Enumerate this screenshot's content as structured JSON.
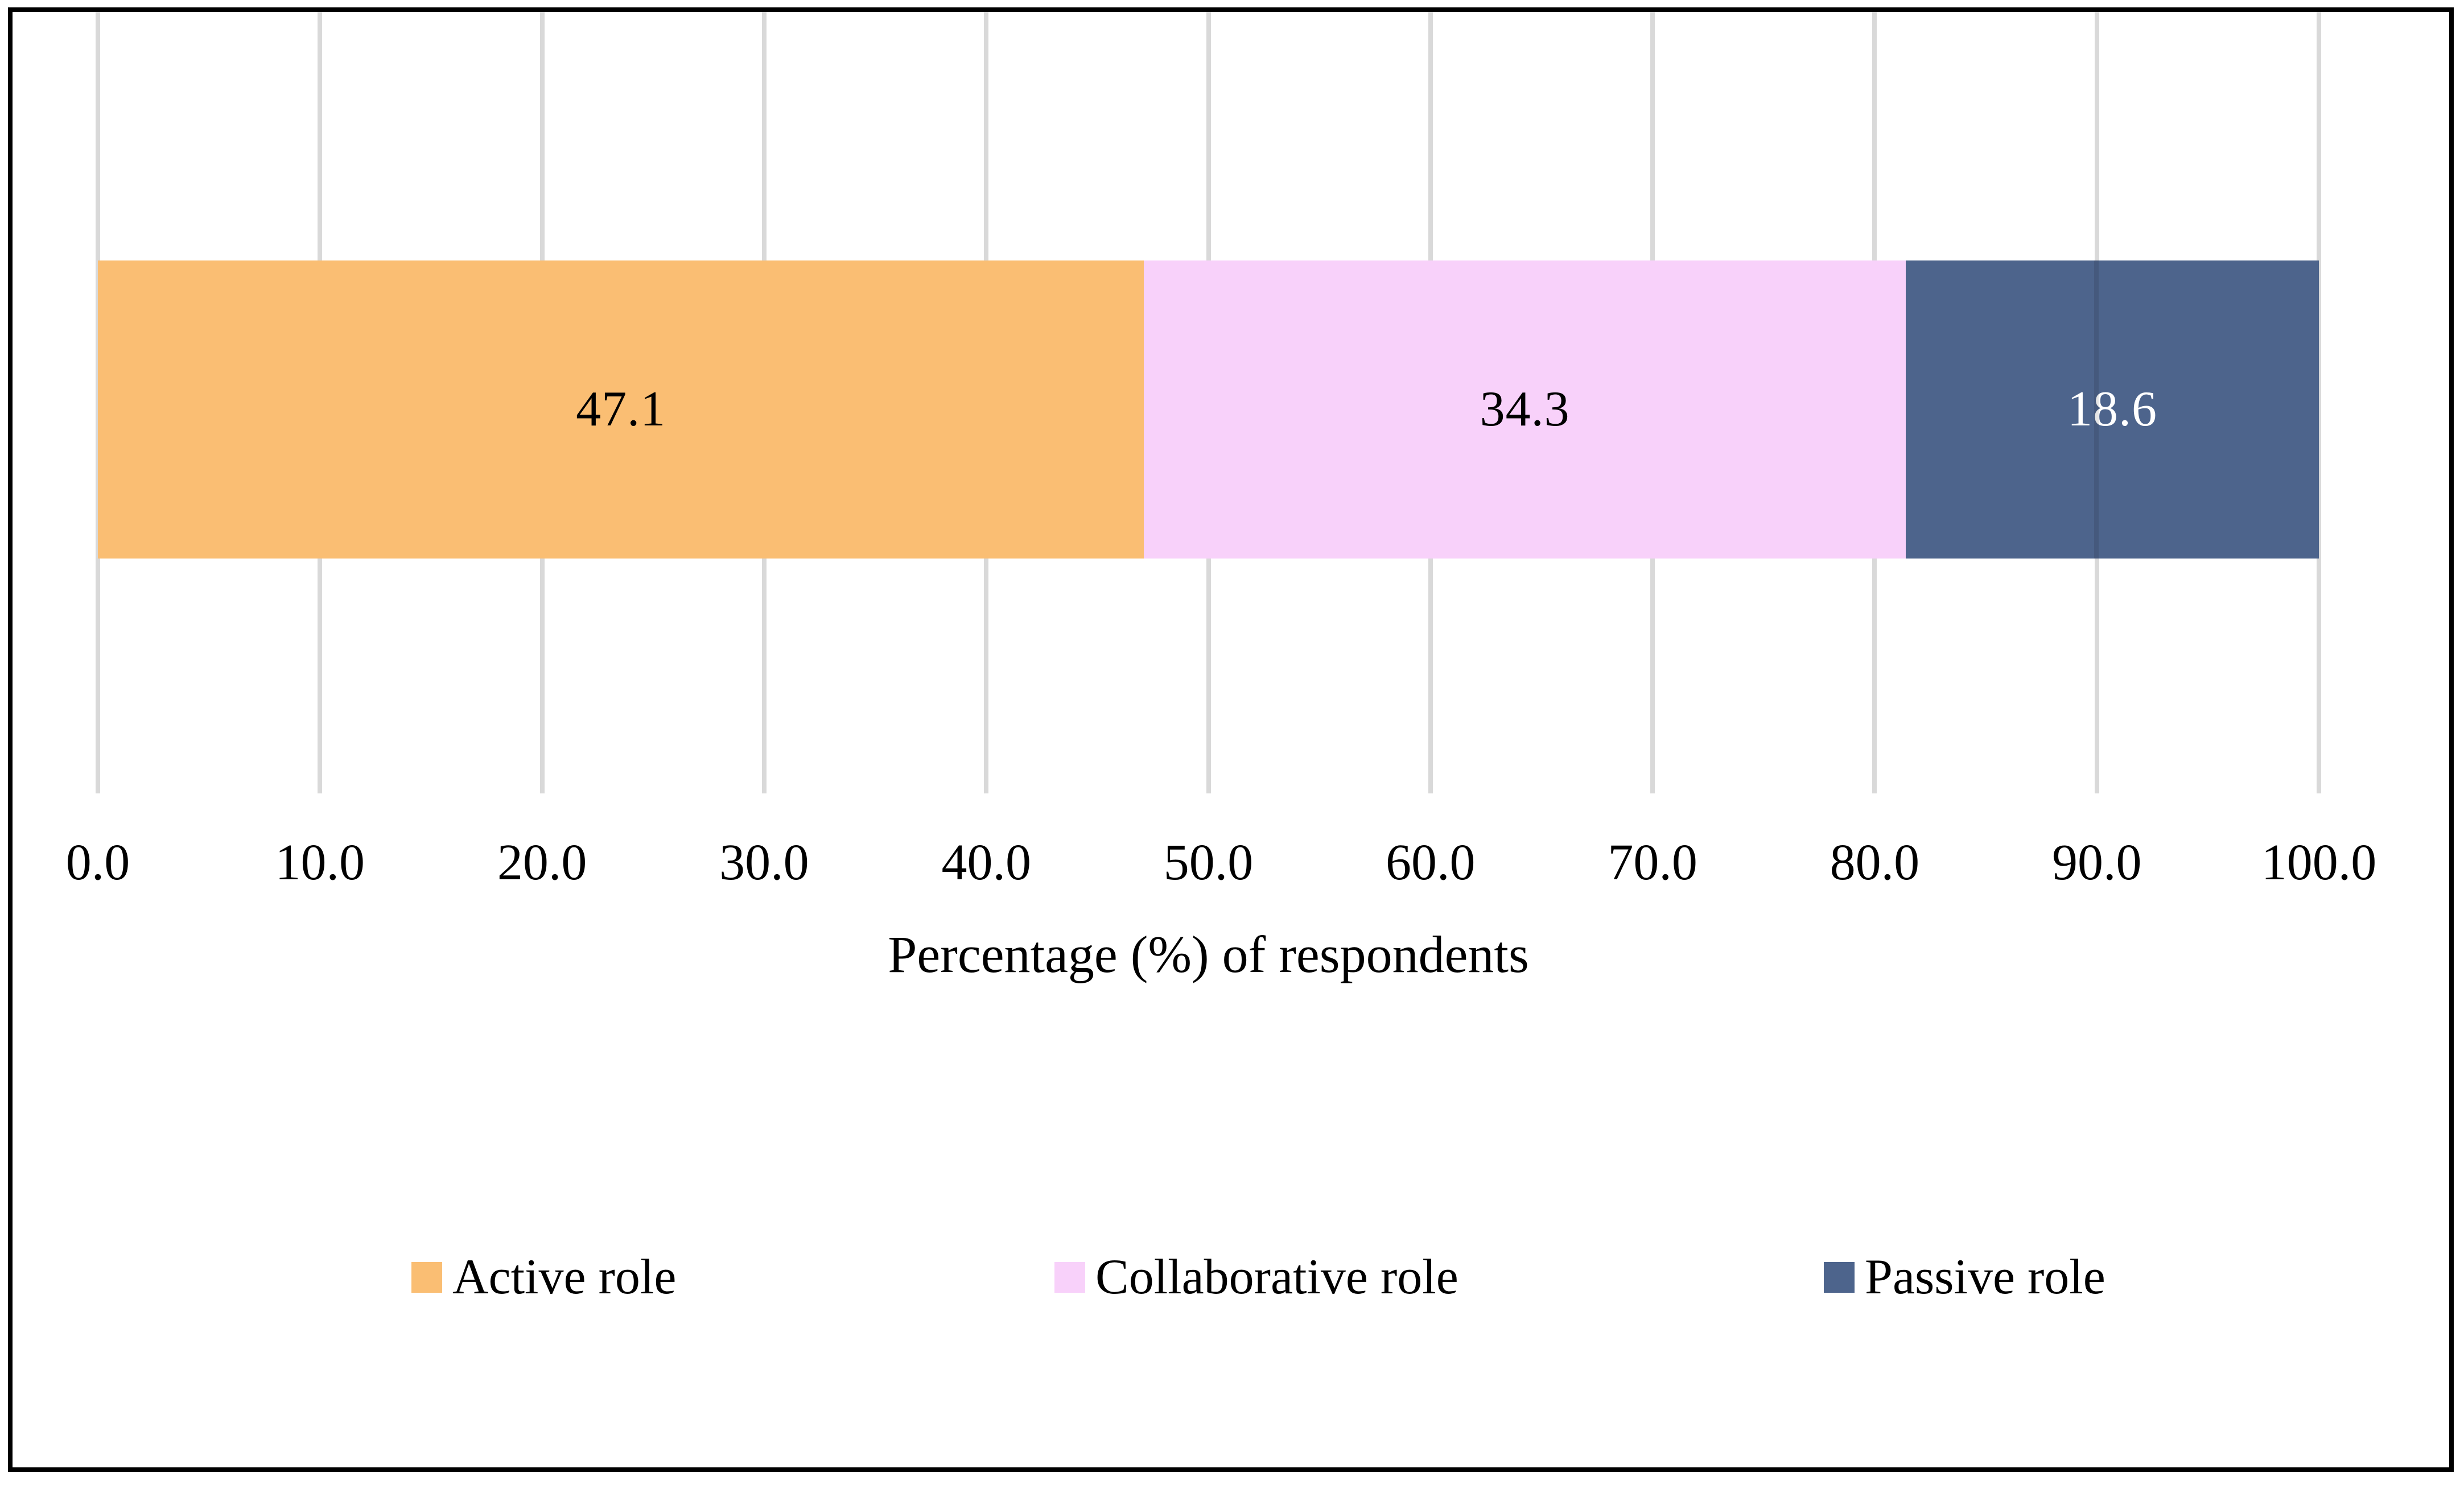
{
  "chart_data": {
    "type": "bar",
    "variant": "horizontal-stacked",
    "xlabel": "Percentage (%) of respondents",
    "xlim": [
      0,
      100
    ],
    "x_ticks": [
      "0.0",
      "10.0",
      "20.0",
      "30.0",
      "40.0",
      "50.0",
      "60.0",
      "70.0",
      "80.0",
      "90.0",
      "100.0"
    ],
    "grid": true,
    "legend_position": "bottom",
    "series": [
      {
        "name": "Active role",
        "value": 47.1,
        "value_label": "47.1",
        "color": "#FABE73",
        "label_color": "#000000"
      },
      {
        "name": "Collaborative role",
        "value": 34.3,
        "value_label": "34.3",
        "color": "#F8D1FA",
        "label_color": "#000000"
      },
      {
        "name": "Passive role",
        "value": 18.6,
        "value_label": "18.6",
        "color": "#4D648C",
        "label_color": "#FFFFFF"
      }
    ],
    "colors": {
      "gridline": "#D9D9D9",
      "figure_border": "#000000",
      "background": "#FFFFFF"
    }
  }
}
